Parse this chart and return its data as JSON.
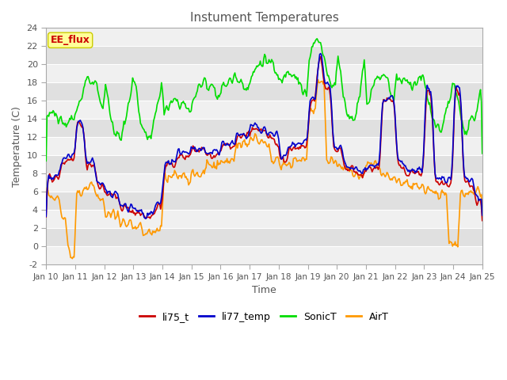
{
  "title": "Instument Temperatures",
  "xlabel": "Time",
  "ylabel": "Temperature (C)",
  "ylim": [
    -2,
    24
  ],
  "yticks": [
    -2,
    0,
    2,
    4,
    6,
    8,
    10,
    12,
    14,
    16,
    18,
    20,
    22,
    24
  ],
  "xtick_labels": [
    "Jan 10",
    "Jan 11",
    "Jan 12",
    "Jan 13",
    "Jan 14",
    "Jan 15",
    "Jan 16",
    "Jan 17",
    "Jan 18",
    "Jan 19",
    "Jan 20",
    "Jan 21",
    "Jan 22",
    "Jan 23",
    "Jan 24",
    "Jan 25"
  ],
  "colors": {
    "li75_t": "#cc0000",
    "li77_temp": "#0000cc",
    "SonicT": "#00dd00",
    "AirT": "#ff9900"
  },
  "outer_bg": "#ffffff",
  "plot_bg_light": "#f0f0f0",
  "plot_bg_dark": "#e0e0e0",
  "annotation_text": "EE_flux",
  "annotation_bg": "#ffff99",
  "annotation_border": "#cc0000",
  "legend_labels": [
    "li75_t",
    "li77_temp",
    "SonicT",
    "AirT"
  ],
  "n_points": 500
}
